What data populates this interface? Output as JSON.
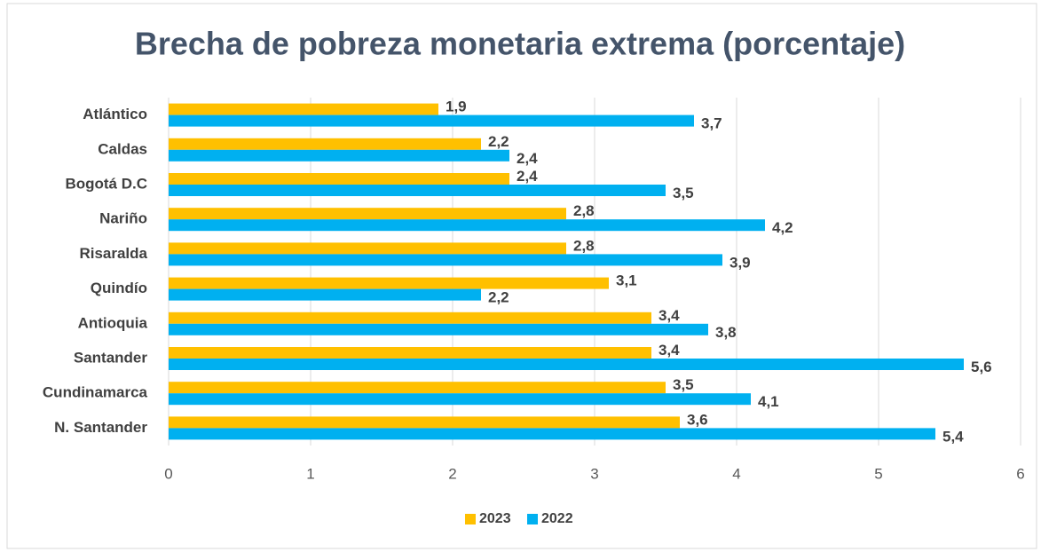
{
  "chart_data": {
    "type": "hbar",
    "title": "Brecha de pobreza monetaria extrema (porcentaje)",
    "categories": [
      "Atlántico",
      "Caldas",
      "Bogotá D.C",
      "Nariño",
      "Risaralda",
      "Quindío",
      "Antioquia",
      "Santander",
      "Cundinamarca",
      "N. Santander"
    ],
    "series": [
      {
        "name": "2023",
        "color": "#FFC000",
        "values": [
          1.9,
          2.2,
          2.4,
          2.8,
          2.8,
          3.1,
          3.4,
          3.4,
          3.5,
          3.6
        ],
        "value_labels": [
          "1,9",
          "2,2",
          "2,4",
          "2,8",
          "2,8",
          "3,1",
          "3,4",
          "3,4",
          "3,5",
          "3,6"
        ]
      },
      {
        "name": "2022",
        "color": "#00B0F0",
        "values": [
          3.7,
          2.4,
          3.5,
          4.2,
          3.9,
          2.2,
          3.8,
          5.6,
          4.1,
          5.4
        ],
        "value_labels": [
          "3,7",
          "2,4",
          "3,5",
          "4,2",
          "3,9",
          "2,2",
          "3,8",
          "5,6",
          "4,1",
          "5,4"
        ]
      }
    ],
    "xlim": [
      0,
      6
    ],
    "xticks": [
      0,
      1,
      2,
      3,
      4,
      5,
      6
    ],
    "grid": true,
    "legend": "bottom"
  }
}
